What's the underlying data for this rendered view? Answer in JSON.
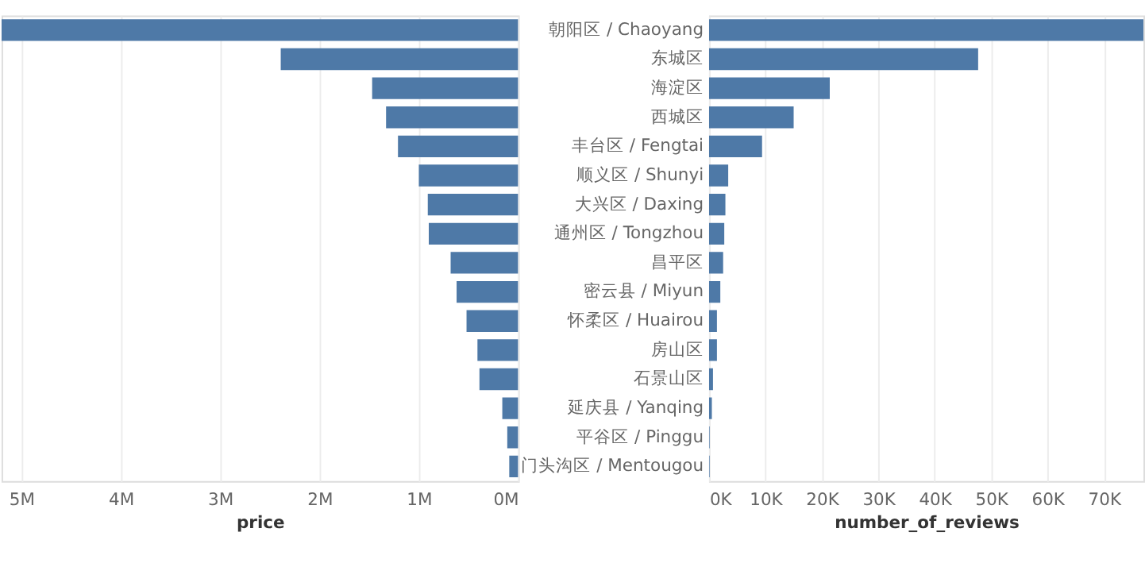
{
  "chart_data": [
    {
      "type": "bar",
      "orientation": "horizontal",
      "xlabel": "price",
      "color": "#4e79a7",
      "grid": "x",
      "tick_labels": "x",
      "categories": [
        null,
        null,
        null,
        null,
        null,
        null,
        null,
        null,
        null,
        null,
        null,
        null,
        null,
        null,
        null,
        null
      ],
      "values": [
        5200000,
        2390000,
        1470000,
        1330000,
        1210000,
        1000000,
        910000,
        900000,
        680000,
        620000,
        520000,
        410000,
        390000,
        160000,
        110000,
        90000
      ],
      "xlim": [
        5200000,
        0
      ],
      "xticks": [
        {
          "value": 5000000,
          "label": "5M"
        },
        {
          "value": 4000000,
          "label": "4M"
        },
        {
          "value": 3000000,
          "label": "3M"
        },
        {
          "value": 2000000,
          "label": "2M"
        },
        {
          "value": 1000000,
          "label": "1M"
        },
        {
          "value": 0,
          "label": "0M"
        }
      ]
    },
    {
      "type": "bar",
      "orientation": "horizontal",
      "xlabel": "number_of_reviews",
      "color": "#4e79a7",
      "grid": "x",
      "categories": [
        "朝阳区 / Chaoyang",
        "东城区",
        "海淀区",
        "西城区",
        "丰台区 / Fengtai",
        "顺义区 / Shunyi",
        "大兴区 / Daxing",
        "通州区 / Tongzhou",
        "昌平区",
        "密云县 / Miyun",
        "怀柔区 / Huairou",
        "房山区",
        "石景山区",
        "延庆县 / Yanqing",
        "平谷区 / Pinggu",
        "门头沟区 / Mentougou"
      ],
      "values": [
        77000,
        47700,
        21400,
        15000,
        9400,
        3400,
        2900,
        2700,
        2500,
        2000,
        1400,
        1400,
        700,
        500,
        100,
        100
      ],
      "xlim": [
        0,
        77000
      ],
      "xticks": [
        {
          "value": 0,
          "label": "0K"
        },
        {
          "value": 10000,
          "label": "10K"
        },
        {
          "value": 20000,
          "label": "20K"
        },
        {
          "value": 30000,
          "label": "30K"
        },
        {
          "value": 40000,
          "label": "40K"
        },
        {
          "value": 50000,
          "label": "50K"
        },
        {
          "value": 60000,
          "label": "60K"
        },
        {
          "value": 70000,
          "label": "70K"
        }
      ]
    }
  ]
}
